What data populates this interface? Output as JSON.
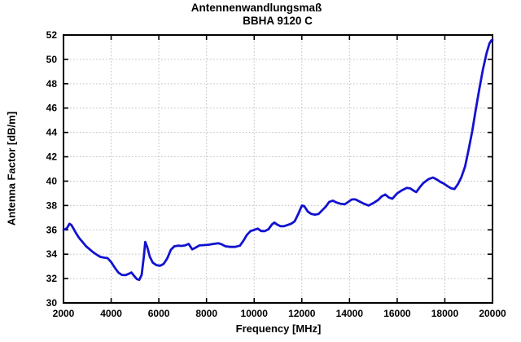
{
  "chart_data": {
    "type": "line",
    "title": "Antennenwandlungsmaß",
    "subtitle": "BBHA 9120 C",
    "xlabel": "Frequency [MHz]",
    "ylabel": "Antenna Factor [dB/m]",
    "xlim": [
      2000,
      20000
    ],
    "ylim": [
      30,
      52
    ],
    "xticks": [
      2000,
      4000,
      6000,
      8000,
      10000,
      12000,
      14000,
      16000,
      18000,
      20000
    ],
    "yticks": [
      30,
      32,
      34,
      36,
      38,
      40,
      42,
      44,
      46,
      48,
      50,
      52
    ],
    "grid": true,
    "legend": "none",
    "colors": {
      "curve": "#1212d0",
      "grid": "#c0c0c0",
      "axis": "#000000",
      "background": "#ffffff",
      "text": "#000000"
    },
    "series": [
      {
        "name": "BBHA 9120 C",
        "color": "#1212d0",
        "points": [
          [
            2000,
            36.0
          ],
          [
            2070,
            36.05
          ],
          [
            2150,
            36.15
          ],
          [
            2250,
            36.5
          ],
          [
            2330,
            36.4
          ],
          [
            2420,
            36.1
          ],
          [
            2520,
            35.75
          ],
          [
            2650,
            35.35
          ],
          [
            2800,
            35.0
          ],
          [
            2950,
            34.65
          ],
          [
            3100,
            34.4
          ],
          [
            3250,
            34.15
          ],
          [
            3400,
            33.95
          ],
          [
            3550,
            33.78
          ],
          [
            3700,
            33.72
          ],
          [
            3850,
            33.68
          ],
          [
            4000,
            33.35
          ],
          [
            4150,
            32.9
          ],
          [
            4300,
            32.5
          ],
          [
            4450,
            32.3
          ],
          [
            4600,
            32.28
          ],
          [
            4750,
            32.4
          ],
          [
            4850,
            32.5
          ],
          [
            4950,
            32.25
          ],
          [
            5080,
            31.95
          ],
          [
            5180,
            31.9
          ],
          [
            5280,
            32.3
          ],
          [
            5370,
            33.8
          ],
          [
            5430,
            35.0
          ],
          [
            5510,
            34.6
          ],
          [
            5620,
            33.8
          ],
          [
            5750,
            33.3
          ],
          [
            5900,
            33.1
          ],
          [
            6050,
            33.05
          ],
          [
            6200,
            33.2
          ],
          [
            6350,
            33.65
          ],
          [
            6500,
            34.35
          ],
          [
            6650,
            34.65
          ],
          [
            6800,
            34.7
          ],
          [
            6950,
            34.68
          ],
          [
            7100,
            34.72
          ],
          [
            7250,
            34.85
          ],
          [
            7400,
            34.4
          ],
          [
            7550,
            34.55
          ],
          [
            7700,
            34.72
          ],
          [
            7900,
            34.75
          ],
          [
            8100,
            34.78
          ],
          [
            8300,
            34.85
          ],
          [
            8500,
            34.9
          ],
          [
            8650,
            34.8
          ],
          [
            8800,
            34.65
          ],
          [
            9000,
            34.6
          ],
          [
            9200,
            34.6
          ],
          [
            9400,
            34.7
          ],
          [
            9550,
            35.1
          ],
          [
            9700,
            35.6
          ],
          [
            9850,
            35.9
          ],
          [
            10000,
            36.0
          ],
          [
            10150,
            36.1
          ],
          [
            10300,
            35.9
          ],
          [
            10450,
            35.9
          ],
          [
            10600,
            36.05
          ],
          [
            10750,
            36.45
          ],
          [
            10850,
            36.6
          ],
          [
            10950,
            36.45
          ],
          [
            11100,
            36.3
          ],
          [
            11250,
            36.3
          ],
          [
            11400,
            36.4
          ],
          [
            11550,
            36.5
          ],
          [
            11700,
            36.7
          ],
          [
            11850,
            37.3
          ],
          [
            12000,
            38.0
          ],
          [
            12100,
            37.95
          ],
          [
            12250,
            37.5
          ],
          [
            12400,
            37.3
          ],
          [
            12550,
            37.25
          ],
          [
            12700,
            37.3
          ],
          [
            12850,
            37.6
          ],
          [
            13000,
            37.9
          ],
          [
            13150,
            38.3
          ],
          [
            13300,
            38.4
          ],
          [
            13450,
            38.25
          ],
          [
            13600,
            38.15
          ],
          [
            13800,
            38.1
          ],
          [
            13950,
            38.3
          ],
          [
            14100,
            38.5
          ],
          [
            14250,
            38.5
          ],
          [
            14400,
            38.35
          ],
          [
            14600,
            38.15
          ],
          [
            14800,
            38.0
          ],
          [
            15000,
            38.2
          ],
          [
            15200,
            38.45
          ],
          [
            15350,
            38.75
          ],
          [
            15500,
            38.9
          ],
          [
            15650,
            38.65
          ],
          [
            15800,
            38.55
          ],
          [
            16000,
            39.0
          ],
          [
            16200,
            39.25
          ],
          [
            16400,
            39.45
          ],
          [
            16550,
            39.4
          ],
          [
            16700,
            39.2
          ],
          [
            16800,
            39.1
          ],
          [
            16950,
            39.5
          ],
          [
            17100,
            39.85
          ],
          [
            17300,
            40.15
          ],
          [
            17500,
            40.3
          ],
          [
            17650,
            40.15
          ],
          [
            17800,
            39.95
          ],
          [
            17950,
            39.8
          ],
          [
            18100,
            39.6
          ],
          [
            18250,
            39.42
          ],
          [
            18400,
            39.35
          ],
          [
            18550,
            39.75
          ],
          [
            18700,
            40.35
          ],
          [
            18850,
            41.2
          ],
          [
            19000,
            42.6
          ],
          [
            19150,
            44.1
          ],
          [
            19300,
            45.9
          ],
          [
            19450,
            47.6
          ],
          [
            19600,
            49.2
          ],
          [
            19750,
            50.5
          ],
          [
            19870,
            51.3
          ],
          [
            19950,
            51.55
          ],
          [
            20000,
            51.6
          ]
        ]
      }
    ]
  }
}
